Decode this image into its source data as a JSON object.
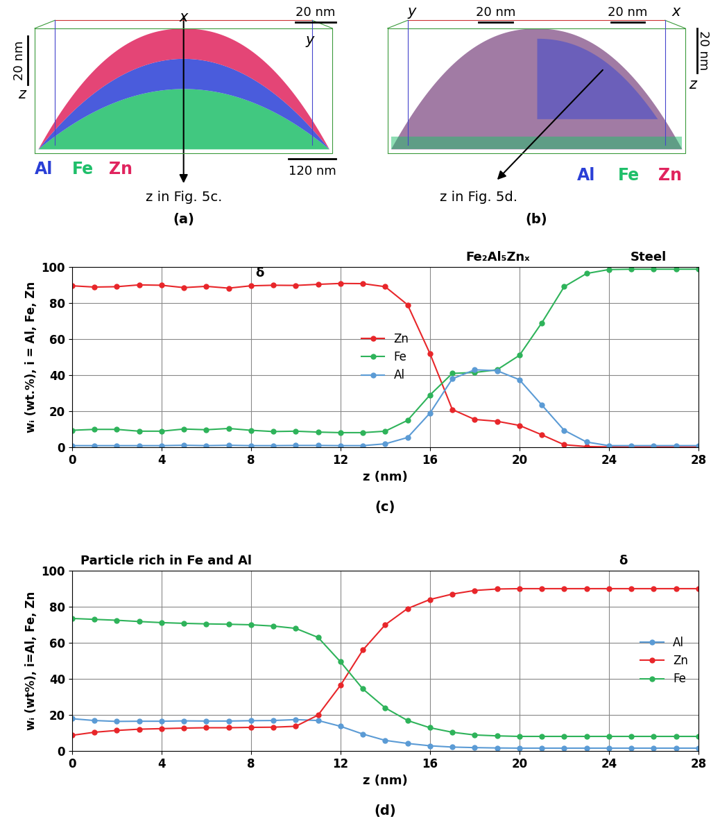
{
  "atom_maps": [
    {
      "caption": "(a)",
      "axis_labels": [
        "x",
        "y",
        "z"
      ],
      "scale_bars": [
        "20 nm",
        "20 nm",
        "120 nm"
      ],
      "elements": [
        {
          "name": "Al",
          "color": "#2a3fd6"
        },
        {
          "name": "Fe",
          "color": "#1fbf6a"
        },
        {
          "name": "Zn",
          "color": "#e0245e"
        }
      ],
      "arrow_label": "z in Fig. 5c."
    },
    {
      "caption": "(b)",
      "axis_labels": [
        "y",
        "x",
        "z"
      ],
      "scale_bars": [
        "20 nm",
        "20 nm",
        "20 nm"
      ],
      "elements": [
        {
          "name": "Al",
          "color": "#2a3fd6"
        },
        {
          "name": "Fe",
          "color": "#1fbf6a"
        },
        {
          "name": "Zn",
          "color": "#e0245e"
        }
      ],
      "arrow_label": "z in Fig. 5d."
    }
  ],
  "chart_data": [
    {
      "type": "line",
      "caption": "(c)",
      "x_label": "z (nm)",
      "y_label": "wᵢ (wt.%), i = Al, Fe, Zn",
      "annotations": [
        "δ",
        "Fe₂Al₅Znₓ",
        "Steel"
      ],
      "x": [
        0,
        1,
        2,
        3,
        4,
        5,
        6,
        7,
        8,
        9,
        10,
        11,
        12,
        13,
        14,
        15,
        16,
        17,
        18,
        19,
        20,
        21,
        22,
        23,
        24,
        25,
        26,
        27,
        28
      ],
      "series": [
        {
          "name": "Zn",
          "color": "#e8262a",
          "marker": "o",
          "line_style": "solid",
          "values": [
            89.5,
            88.8,
            89,
            90,
            89.8,
            88.5,
            89.2,
            88.2,
            89.5,
            89.8,
            89.7,
            90.3,
            90.8,
            90.7,
            89,
            79,
            52,
            21,
            15.5,
            14.5,
            12.2,
            7,
            1.5,
            0.5,
            0.3,
            0.2,
            0.2,
            0.2,
            0.2
          ]
        },
        {
          "name": "Fe",
          "color": "#2eb35a",
          "marker": "o",
          "line_style": "solid",
          "values": [
            9.5,
            10,
            10,
            9,
            9,
            10.2,
            9.8,
            10.5,
            9.5,
            8.8,
            9,
            8.5,
            8.2,
            8.2,
            9,
            15,
            29,
            41,
            41.5,
            43,
            51,
            69,
            89,
            96.3,
            98.5,
            98.7,
            98.7,
            98.7,
            98.7
          ]
        },
        {
          "name": "Al",
          "color": "#5b9bd5",
          "marker": "o",
          "line_style": "solid",
          "values": [
            1,
            1,
            1,
            1,
            1,
            1.2,
            1,
            1.2,
            1,
            1,
            1.1,
            1.1,
            1,
            1,
            2,
            5.5,
            19,
            38,
            43,
            42.5,
            37.5,
            23.5,
            9.5,
            3,
            1,
            1,
            1,
            1,
            1
          ]
        }
      ],
      "xlim": [
        0,
        28
      ],
      "xticks": [
        0,
        4,
        8,
        12,
        16,
        20,
        24,
        28
      ],
      "ylim": [
        0,
        100
      ],
      "yticks": [
        0,
        20,
        40,
        60,
        80,
        100
      ],
      "grid": true,
      "legend": "center"
    },
    {
      "type": "line",
      "caption": "(d)",
      "x_label": "z (nm)",
      "y_label": "wᵢ (wt%), i=Al, Fe, Zn",
      "annotations": [
        "Particle rich in Fe and Al",
        "δ"
      ],
      "x": [
        0,
        1,
        2,
        3,
        4,
        5,
        6,
        7,
        8,
        9,
        10,
        11,
        12,
        13,
        14,
        15,
        16,
        17,
        18,
        19,
        20,
        21,
        22,
        23,
        24,
        25,
        26,
        27,
        28
      ],
      "series": [
        {
          "name": "Al",
          "color": "#5b9bd5",
          "marker": "o",
          "line_style": "solid",
          "values": [
            18,
            17,
            16.5,
            16.6,
            16.6,
            16.8,
            16.7,
            16.7,
            16.9,
            17,
            17.5,
            17,
            13.8,
            9.5,
            6,
            4.3,
            3,
            2.3,
            2,
            1.8,
            1.7,
            1.7,
            1.7,
            1.7,
            1.7,
            1.7,
            1.7,
            1.7,
            1.7
          ]
        },
        {
          "name": "Zn",
          "color": "#e8262a",
          "marker": "o",
          "line_style": "solid",
          "values": [
            8.8,
            10.5,
            11.5,
            12.2,
            12.5,
            12.8,
            13,
            13,
            13.2,
            13.3,
            13.8,
            20,
            36.5,
            56,
            70,
            79,
            84,
            87,
            89,
            89.8,
            90,
            90,
            90,
            90,
            90,
            90,
            90,
            90,
            90
          ]
        },
        {
          "name": "Fe",
          "color": "#2eb35a",
          "marker": "o",
          "line_style": "solid",
          "values": [
            73.5,
            73,
            72.5,
            71.8,
            71.2,
            70.8,
            70.5,
            70.3,
            70,
            69.3,
            68,
            63,
            49.5,
            34.5,
            24,
            17,
            13,
            10.5,
            9,
            8.5,
            8.2,
            8.2,
            8.2,
            8.2,
            8.2,
            8.2,
            8.2,
            8.2,
            8.2
          ]
        }
      ],
      "xlim": [
        0,
        28
      ],
      "xticks": [
        0,
        4,
        8,
        12,
        16,
        20,
        24,
        28
      ],
      "ylim": [
        0,
        100
      ],
      "yticks": [
        0,
        20,
        40,
        60,
        80,
        100
      ],
      "grid": true,
      "legend": "center right"
    }
  ]
}
